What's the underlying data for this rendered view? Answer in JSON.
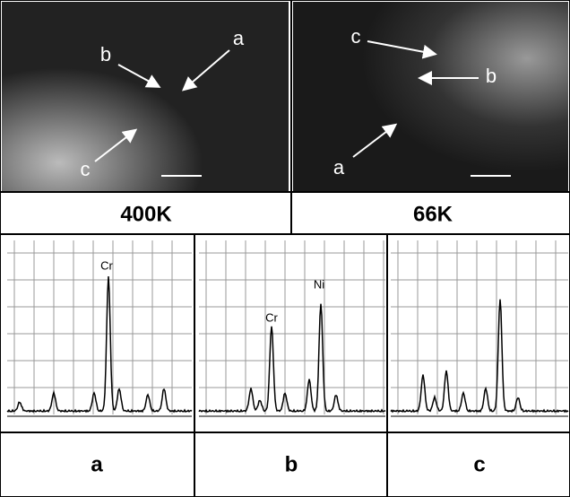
{
  "panels": [
    {
      "image_labels": [
        "b",
        "a",
        "c"
      ],
      "caption": "400K"
    },
    {
      "image_labels": [
        "c",
        "b",
        "a"
      ],
      "caption": "66K"
    }
  ],
  "spectra": [
    {
      "peak_labels": [
        "Cr"
      ],
      "caption": "a"
    },
    {
      "peak_labels": [
        "Cr",
        "Ni"
      ],
      "caption": "b"
    },
    {
      "peak_labels": [],
      "caption": "c"
    }
  ]
}
